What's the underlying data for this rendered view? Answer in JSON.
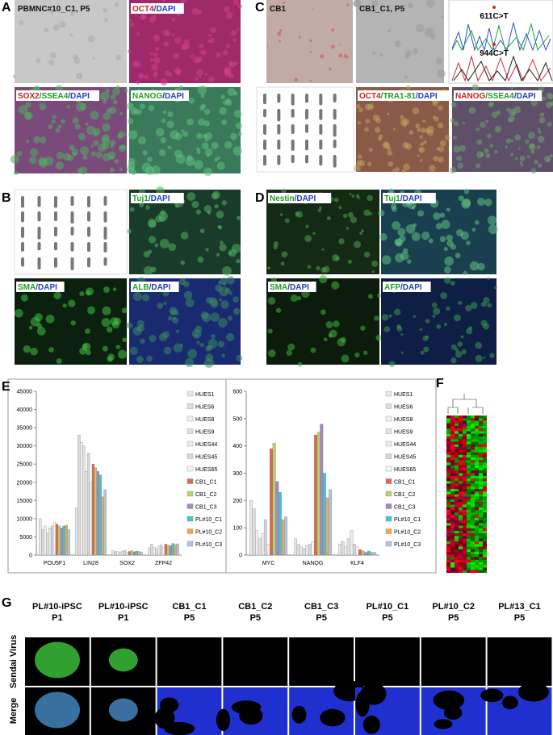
{
  "panel_labels": [
    "A",
    "B",
    "C",
    "D",
    "E",
    "F",
    "G"
  ],
  "panel_a": {
    "image_labels": [
      [
        {
          "text": "PBMNC#10_C1, P5",
          "color": "#111111"
        }
      ],
      [
        {
          "text": "OCT4",
          "color": "#d02020"
        },
        {
          "text": "/DAPI",
          "color": "#2040c0"
        }
      ],
      [
        {
          "text": "SOX2",
          "color": "#d02020"
        },
        {
          "text": "/SSEA4",
          "color": "#20a020"
        },
        {
          "text": "/DAPI",
          "color": "#2040c0"
        }
      ],
      [
        {
          "text": "NANOG",
          "color": "#20a020"
        },
        {
          "text": "/DAPI",
          "color": "#2040c0"
        }
      ]
    ]
  },
  "panel_b": {
    "image_labels": [
      [
        {
          "text": "Tuj1",
          "color": "#20a020"
        },
        {
          "text": "/DAPI",
          "color": "#2040c0"
        }
      ],
      [
        {
          "text": "SMA",
          "color": "#20a020"
        },
        {
          "text": "/DAPI",
          "color": "#2040c0"
        }
      ],
      [
        {
          "text": "ALB",
          "color": "#20a020"
        },
        {
          "text": "/DAPI",
          "color": "#2040c0"
        }
      ]
    ]
  },
  "panel_c": {
    "image_labels": [
      [
        {
          "text": "CB1",
          "color": "#111111"
        }
      ],
      [
        {
          "text": "CB1_C1, P5",
          "color": "#111111"
        }
      ],
      [
        {
          "text": "OCT4",
          "color": "#d02020"
        },
        {
          "text": "/TRA1-81",
          "color": "#20a020"
        },
        {
          "text": "/DAPI",
          "color": "#2040c0"
        }
      ],
      [
        {
          "text": "NANOG",
          "color": "#d02020"
        },
        {
          "text": "/SSEA4",
          "color": "#20a020"
        },
        {
          "text": "/DAPI",
          "color": "#2040c0"
        }
      ]
    ],
    "mutations": [
      "611C>T",
      "944C>T"
    ]
  },
  "panel_d": {
    "image_labels": [
      [
        {
          "text": "Nestin",
          "color": "#20a020"
        },
        {
          "text": "/DAPI",
          "color": "#2040c0"
        }
      ],
      [
        {
          "text": "Tuj1",
          "color": "#20a020"
        },
        {
          "text": "/DAPI",
          "color": "#2040c0"
        }
      ],
      [
        {
          "text": "SMA",
          "color": "#20a020"
        },
        {
          "text": "/DAPI",
          "color": "#2040c0"
        }
      ],
      [
        {
          "text": "AFP",
          "color": "#20a020"
        },
        {
          "text": "/DAPI",
          "color": "#2040c0"
        }
      ]
    ]
  },
  "chart_data": [
    {
      "type": "bar",
      "categories": [
        "POU5F1",
        "LIN28",
        "SOX2",
        "ZFP42"
      ],
      "ylim": [
        0,
        45000
      ],
      "yticks": [
        0,
        5000,
        10000,
        15000,
        20000,
        25000,
        30000,
        35000,
        40000,
        45000
      ],
      "series": [
        {
          "name": "HUES1",
          "color": "#e8e8e8",
          "values": [
            10000,
            13000,
            1200,
            2000
          ]
        },
        {
          "name": "HUES6",
          "color": "#dcdcdc",
          "values": [
            7000,
            33000,
            900,
            3000
          ]
        },
        {
          "name": "HUES8",
          "color": "#f0f0f0",
          "values": [
            8000,
            31000,
            1000,
            2200
          ]
        },
        {
          "name": "HUES9",
          "color": "#e0e0e0",
          "values": [
            6000,
            30000,
            800,
            1800
          ]
        },
        {
          "name": "HUES44",
          "color": "#ececec",
          "values": [
            7500,
            23000,
            1100,
            2500
          ]
        },
        {
          "name": "HUES45",
          "color": "#d8d8d8",
          "values": [
            8000,
            28000,
            1300,
            2800
          ]
        },
        {
          "name": "HUES65",
          "color": "#f4f4f4",
          "values": [
            9000,
            20000,
            700,
            2100
          ]
        },
        {
          "name": "CB1_C1",
          "color": "#e06555",
          "values": [
            8500,
            25000,
            1000,
            3000
          ]
        },
        {
          "name": "CB1_C2",
          "color": "#b4d468",
          "values": [
            8000,
            24000,
            1200,
            2700
          ]
        },
        {
          "name": "CB1_C3",
          "color": "#a487c6",
          "values": [
            7500,
            23000,
            900,
            2600
          ]
        },
        {
          "name": "PL#10_C1",
          "color": "#45c3d6",
          "values": [
            8000,
            22000,
            1100,
            3200
          ]
        },
        {
          "name": "PL#10_C2",
          "color": "#f2a555",
          "values": [
            8200,
            16000,
            1000,
            2900
          ]
        },
        {
          "name": "PL#10_C3",
          "color": "#a8c6e6",
          "values": [
            7000,
            18000,
            800,
            3100
          ]
        }
      ]
    },
    {
      "type": "bar",
      "categories": [
        "MYC",
        "NANOG",
        "KLF4"
      ],
      "ylim": [
        0,
        600
      ],
      "yticks": [
        0,
        100,
        200,
        300,
        400,
        500,
        600
      ],
      "series": [
        {
          "name": "HUES1",
          "color": "#e8e8e8",
          "values": [
            200,
            60,
            40
          ]
        },
        {
          "name": "HUES6",
          "color": "#dcdcdc",
          "values": [
            170,
            40,
            50
          ]
        },
        {
          "name": "HUES8",
          "color": "#f0f0f0",
          "values": [
            90,
            30,
            30
          ]
        },
        {
          "name": "HUES9",
          "color": "#e0e0e0",
          "values": [
            60,
            25,
            60
          ]
        },
        {
          "name": "HUES44",
          "color": "#ececec",
          "values": [
            80,
            35,
            90
          ]
        },
        {
          "name": "HUES45",
          "color": "#d8d8d8",
          "values": [
            130,
            40,
            40
          ]
        },
        {
          "name": "HUES65",
          "color": "#f4f4f4",
          "values": [
            40,
            50,
            30
          ]
        },
        {
          "name": "CB1_C1",
          "color": "#e06555",
          "values": [
            390,
            440,
            20
          ]
        },
        {
          "name": "CB1_C2",
          "color": "#b4d468",
          "values": [
            410,
            450,
            15
          ]
        },
        {
          "name": "CB1_C3",
          "color": "#a487c6",
          "values": [
            270,
            480,
            10
          ]
        },
        {
          "name": "PL#10_C1",
          "color": "#45c3d6",
          "values": [
            230,
            300,
            15
          ]
        },
        {
          "name": "PL#10_C2",
          "color": "#f2a555",
          "values": [
            130,
            210,
            10
          ]
        },
        {
          "name": "PL#10_C3",
          "color": "#a8c6e6",
          "values": [
            140,
            240,
            10
          ]
        }
      ]
    }
  ],
  "panel_g": {
    "columns": [
      [
        "PL#10-iPSC",
        "P1"
      ],
      [
        "PL#10-iPSC",
        "P1"
      ],
      [
        "CB1_C1",
        "P5"
      ],
      [
        "CB1_C2",
        "P5"
      ],
      [
        "CB1_C3",
        "P5"
      ],
      [
        "PL#10_C1",
        "P5"
      ],
      [
        "PL#10_C2",
        "P5"
      ],
      [
        "PL#13_C1",
        "P5"
      ]
    ],
    "rows": [
      "Sendai Virus",
      "Merge"
    ]
  }
}
